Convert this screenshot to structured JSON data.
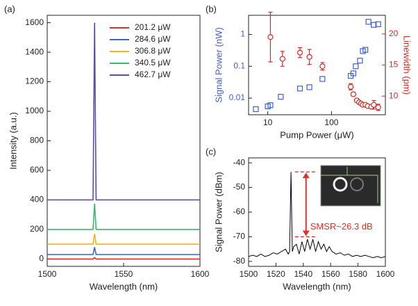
{
  "chart_data": [
    {
      "type": "line",
      "panel_label": "(a)",
      "x_label": "Wavelength (nm)",
      "y_label": "Intensity (a.u.)",
      "x": [
        1500,
        1530,
        1531,
        1532,
        1600
      ],
      "series": [
        {
          "name": "201.2 μW",
          "color": "#e0302a",
          "values": [
            0,
            0,
            10,
            0,
            0
          ]
        },
        {
          "name": "284.6 μW",
          "color": "#3a66c4",
          "values": [
            30,
            30,
            80,
            30,
            30
          ]
        },
        {
          "name": "306.8 μW",
          "color": "#f2b416",
          "values": [
            100,
            100,
            170,
            100,
            100
          ]
        },
        {
          "name": "340.5 μW",
          "color": "#3cb86a",
          "values": [
            200,
            200,
            375,
            200,
            200
          ]
        },
        {
          "name": "462.7 μW",
          "color": "#5a4fa8",
          "values": [
            400,
            400,
            1600,
            400,
            400
          ]
        }
      ],
      "xlim": [
        1500,
        1600
      ],
      "xticks": [
        1500,
        1550,
        1600
      ],
      "ylim": [
        -50,
        1650
      ],
      "yticks": [
        0,
        200,
        400,
        600,
        800,
        1000,
        1200,
        1400,
        1600
      ],
      "legend": "upper right"
    },
    {
      "type": "scatter",
      "panel_label": "(b)",
      "x_label": "Pump Power (μW)",
      "y_label": "Signal Power (nW)",
      "y2_label": "Linewidth (pm)",
      "xlog": true,
      "ylog": true,
      "xlim": [
        5,
        700
      ],
      "xticks": [
        10,
        100
      ],
      "ylim": [
        0.003,
        4
      ],
      "yticks": [
        0.01,
        0.1,
        1
      ],
      "y2lim": [
        7,
        23
      ],
      "y2ticks": [
        10,
        15,
        20
      ],
      "series": [
        {
          "color": "#3f5fcf",
          "marker": "square",
          "x": [
            6.5,
            10,
            11,
            16,
            32,
            45,
            72,
            200,
            220,
            240,
            280,
            310,
            340,
            380,
            460,
            540
          ],
          "values": [
            0.0045,
            0.0055,
            0.006,
            0.011,
            0.02,
            0.022,
            0.04,
            0.05,
            0.06,
            0.1,
            0.15,
            0.3,
            0.33,
            2.5,
            2.0,
            2.1
          ]
        },
        {
          "color": "#d42a2a",
          "marker": "circle",
          "axis": "y2",
          "x": [
            11,
            17,
            32,
            45,
            72,
            200,
            220,
            250,
            270,
            290,
            310,
            340,
            370,
            420,
            460,
            540
          ],
          "values": [
            19.5,
            16,
            17,
            16.3,
            14.8,
            11.5,
            10.3,
            9.3,
            9,
            8.8,
            8.6,
            8.6,
            8.4,
            8.3,
            8.6,
            8.2
          ],
          "errors": [
            4,
            1.2,
            0.8,
            1.2,
            0.6,
            0.5,
            0.3,
            0.3,
            0.2,
            0.2,
            0.2,
            0.2,
            0.2,
            0.3,
            0.7,
            0.5
          ]
        }
      ]
    },
    {
      "type": "line",
      "panel_label": "(c)",
      "x_label": "Wavelength (nm)",
      "y_label": "Signal Power (dBm)",
      "x": [
        1500,
        1503,
        1506,
        1509,
        1512,
        1515,
        1518,
        1521,
        1524,
        1527,
        1529,
        1530,
        1531,
        1532,
        1533,
        1535,
        1537,
        1539,
        1541,
        1543,
        1545,
        1547,
        1549,
        1551,
        1553,
        1555,
        1557,
        1559,
        1561,
        1564,
        1567,
        1570,
        1573,
        1576,
        1579,
        1582,
        1585,
        1588,
        1591,
        1594,
        1597,
        1600
      ],
      "series": [
        {
          "color": "#000000",
          "values": [
            -78,
            -77.5,
            -78,
            -77,
            -78,
            -77.5,
            -76.5,
            -77,
            -76,
            -75,
            -77,
            -76,
            -43.7,
            -76,
            -74,
            -73,
            -77,
            -72,
            -76,
            -71,
            -75,
            -71,
            -76,
            -72,
            -75,
            -73,
            -76,
            -74,
            -76,
            -77,
            -76.5,
            -77.5,
            -77,
            -78,
            -77.5,
            -78,
            -77.5,
            -78,
            -78.5,
            -78,
            -78.5,
            -78
          ]
        }
      ],
      "xlim": [
        1500,
        1600
      ],
      "xticks": [
        1500,
        1520,
        1540,
        1560,
        1580,
        1600
      ],
      "ylim": [
        -82,
        -38
      ],
      "yticks": [
        -80,
        -70,
        -60,
        -50,
        -40
      ],
      "annotation": {
        "text": "SMSR~26.3 dB",
        "top": -43.7,
        "bottom": -70,
        "color": "#e0302a"
      }
    }
  ]
}
